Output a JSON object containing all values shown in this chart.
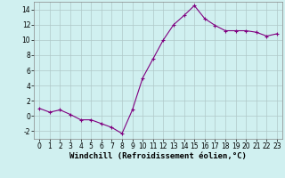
{
  "x": [
    0,
    1,
    2,
    3,
    4,
    5,
    6,
    7,
    8,
    9,
    10,
    11,
    12,
    13,
    14,
    15,
    16,
    17,
    18,
    19,
    20,
    21,
    22,
    23
  ],
  "y": [
    1.0,
    0.5,
    0.8,
    0.2,
    -0.5,
    -0.5,
    -1.0,
    -1.5,
    -2.3,
    0.8,
    5.0,
    7.5,
    10.0,
    12.0,
    13.2,
    14.5,
    12.8,
    11.9,
    11.2,
    11.2,
    11.2,
    11.0,
    10.5,
    10.8
  ],
  "line_color": "#800080",
  "marker": "+",
  "bg_color": "#d0f0f0",
  "grid_color": "#b0c8c8",
  "xlabel": "Windchill (Refroidissement éolien,°C)",
  "xlabel_fontsize": 6.5,
  "ylim": [
    -3,
    15
  ],
  "xlim": [
    -0.5,
    23.5
  ],
  "yticks": [
    -2,
    0,
    2,
    4,
    6,
    8,
    10,
    12,
    14
  ],
  "xticks": [
    0,
    1,
    2,
    3,
    4,
    5,
    6,
    7,
    8,
    9,
    10,
    11,
    12,
    13,
    14,
    15,
    16,
    17,
    18,
    19,
    20,
    21,
    22,
    23
  ],
  "tick_fontsize": 5.5,
  "spine_color": "#888888"
}
